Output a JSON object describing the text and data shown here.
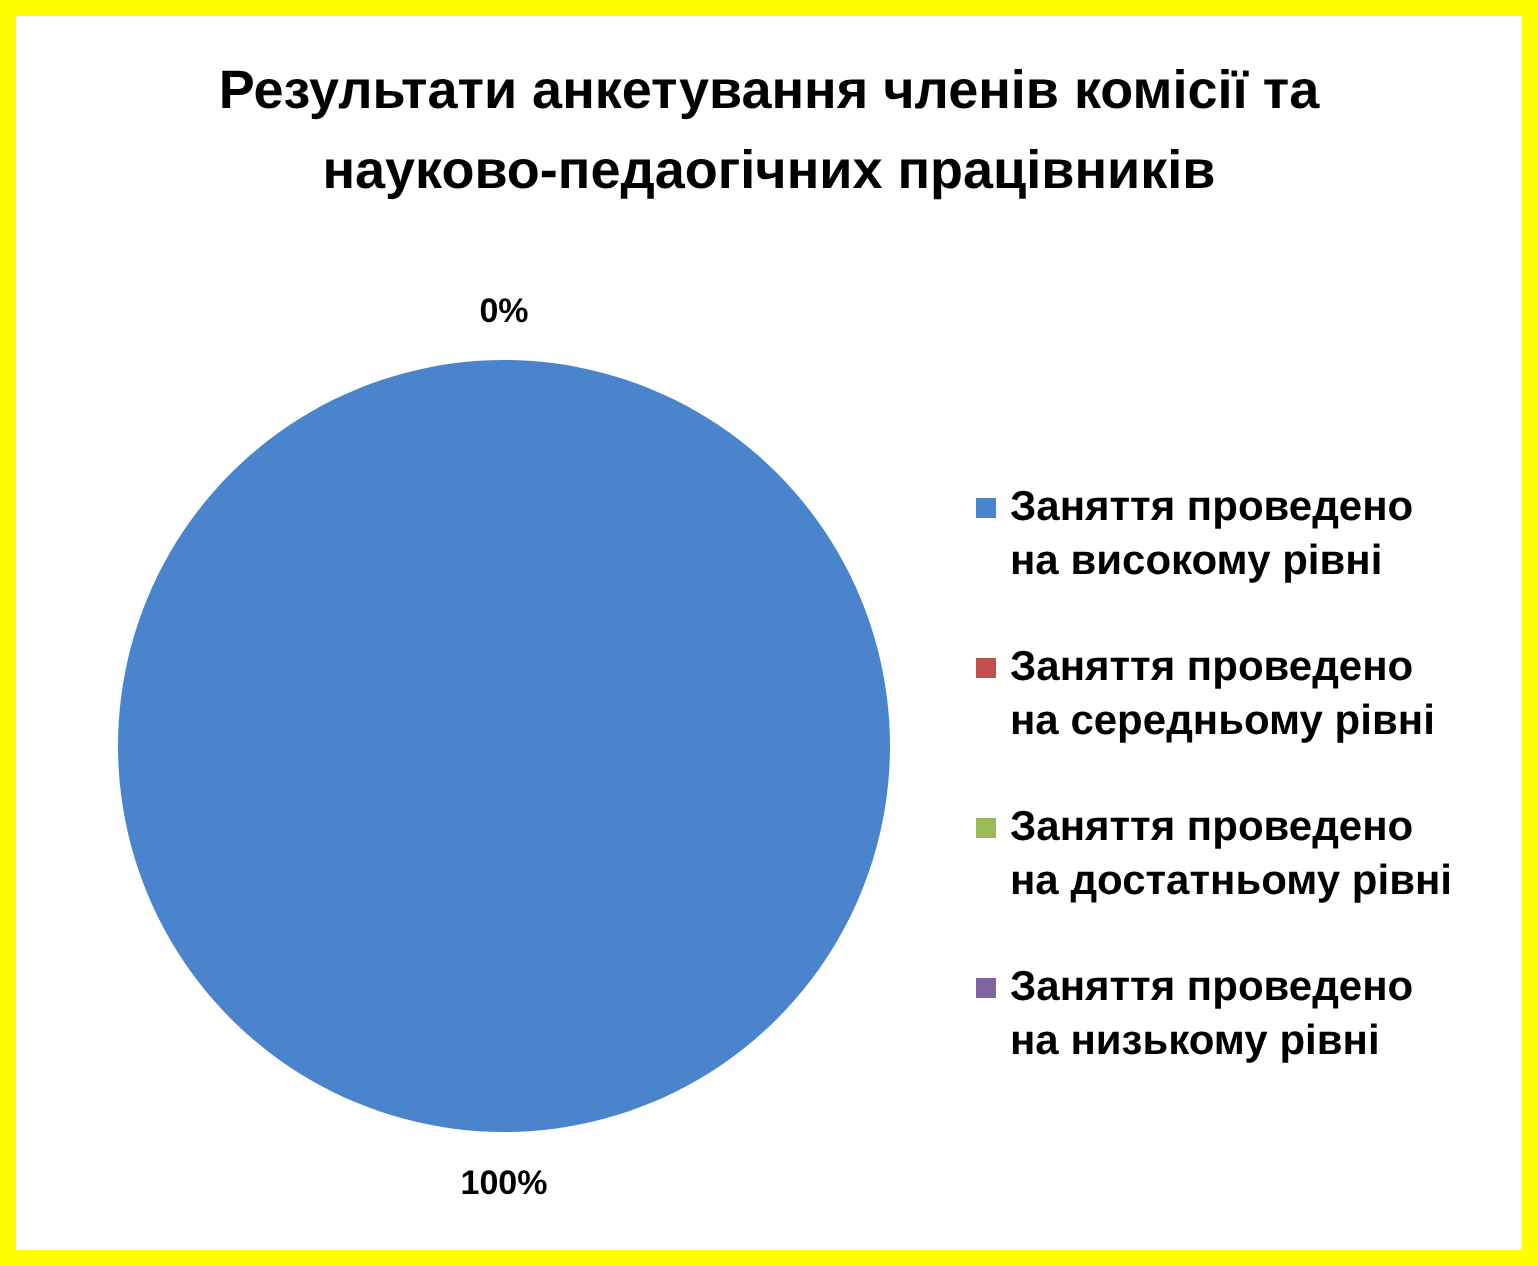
{
  "chart_data": {
    "type": "pie",
    "title": "Результати анкетування членів комісії та науково-педаогічних працівників",
    "categories": [
      "Заняття проведено на високому рівні",
      "Заняття проведено на середньому рівні",
      "Заняття проведено на достатньому рівні",
      "Заняття проведено на низькому рівні"
    ],
    "values": [
      100,
      0,
      0,
      0
    ],
    "colors": [
      "#4a84cc",
      "#c0504d",
      "#9bbb59",
      "#8064a2"
    ],
    "value_labels": [
      "100%",
      "0%",
      null,
      null
    ],
    "legend": "right"
  }
}
